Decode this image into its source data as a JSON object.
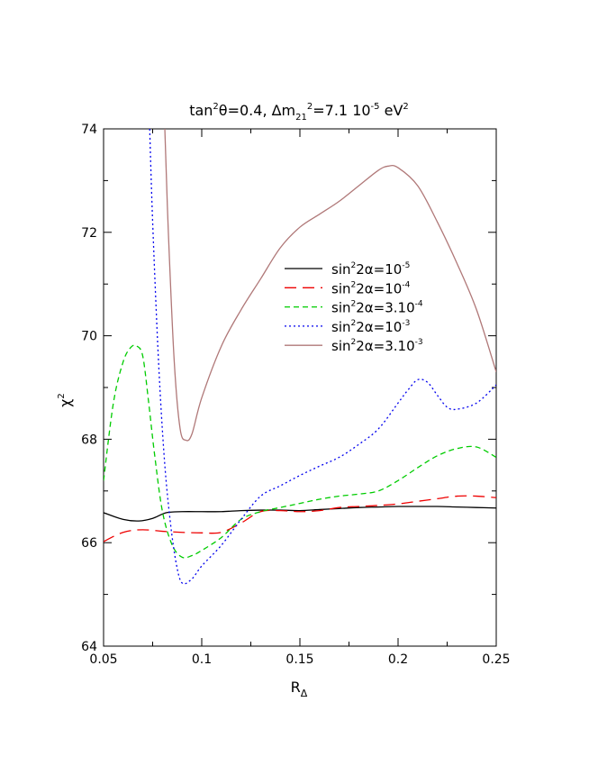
{
  "chart_data": {
    "type": "line",
    "title": {
      "base": "tan",
      "sup1": "2",
      "mid": "θ=0.4, Δm",
      "sub": "21",
      "sup2": "2",
      "mid2": "=7.1 10",
      "sup3": "-5",
      "end": " eV",
      "sup4": "2"
    },
    "xlabel": {
      "base": "R",
      "sub": "Δ"
    },
    "ylabel": {
      "base": "χ",
      "sup": "2"
    },
    "xlim": [
      0.05,
      0.25
    ],
    "ylim": [
      64,
      74
    ],
    "x_ticks": [
      {
        "value": 0.05,
        "label": "0.05"
      },
      {
        "value": 0.1,
        "label": "0.1"
      },
      {
        "value": 0.15,
        "label": "0.15"
      },
      {
        "value": 0.2,
        "label": "0.2"
      },
      {
        "value": 0.25,
        "label": "0.25"
      }
    ],
    "y_ticks": [
      {
        "value": 64,
        "label": "64"
      },
      {
        "value": 66,
        "label": "66"
      },
      {
        "value": 68,
        "label": "68"
      },
      {
        "value": 70,
        "label": "70"
      },
      {
        "value": 72,
        "label": "72"
      },
      {
        "value": 74,
        "label": "74"
      }
    ],
    "grid": false,
    "legend_position": "center-right",
    "series": [
      {
        "key": "s1e-5",
        "label": {
          "pre": "sin",
          "sup1": "2",
          "mid": "2α=10",
          "sup2": "-5"
        },
        "color": "#000000",
        "dash": "",
        "x": [
          0.05,
          0.06,
          0.068,
          0.075,
          0.082,
          0.09,
          0.1,
          0.11,
          0.12,
          0.13,
          0.14,
          0.15,
          0.16,
          0.17,
          0.18,
          0.19,
          0.2,
          0.21,
          0.22,
          0.23,
          0.24,
          0.25
        ],
        "y": [
          66.58,
          66.45,
          66.42,
          66.47,
          66.58,
          66.6,
          66.6,
          66.6,
          66.62,
          66.63,
          66.63,
          66.62,
          66.64,
          66.66,
          66.68,
          66.69,
          66.7,
          66.7,
          66.7,
          66.69,
          66.68,
          66.67
        ]
      },
      {
        "key": "s1e-4",
        "label": {
          "pre": "sin",
          "sup1": "2",
          "mid": "2α=10",
          "sup2": "-4"
        },
        "color": "#ee0000",
        "dash": "13,7",
        "x": [
          0.05,
          0.055,
          0.06,
          0.065,
          0.07,
          0.075,
          0.08,
          0.09,
          0.1,
          0.11,
          0.12,
          0.13,
          0.14,
          0.15,
          0.16,
          0.17,
          0.18,
          0.19,
          0.2,
          0.21,
          0.22,
          0.23,
          0.24,
          0.25
        ],
        "y": [
          66.02,
          66.12,
          66.2,
          66.24,
          66.25,
          66.24,
          66.22,
          66.2,
          66.19,
          66.2,
          66.38,
          66.6,
          66.62,
          66.6,
          66.62,
          66.68,
          66.7,
          66.72,
          66.75,
          66.8,
          66.85,
          66.9,
          66.9,
          66.87
        ]
      },
      {
        "key": "s3e-4",
        "label": {
          "pre": "sin",
          "sup1": "2",
          "mid": "2α=3.10",
          "sup2": "-4"
        },
        "color": "#00cc00",
        "dash": "6,4",
        "x": [
          0.05,
          0.055,
          0.06,
          0.064,
          0.067,
          0.07,
          0.073,
          0.076,
          0.08,
          0.085,
          0.09,
          0.095,
          0.1,
          0.11,
          0.12,
          0.13,
          0.14,
          0.15,
          0.16,
          0.17,
          0.18,
          0.19,
          0.2,
          0.21,
          0.22,
          0.23,
          0.24,
          0.25
        ],
        "y": [
          67.2,
          68.7,
          69.5,
          69.78,
          69.8,
          69.6,
          68.7,
          67.7,
          66.6,
          65.95,
          65.72,
          65.75,
          65.85,
          66.1,
          66.45,
          66.6,
          66.68,
          66.76,
          66.84,
          66.9,
          66.94,
          67.0,
          67.2,
          67.45,
          67.68,
          67.82,
          67.85,
          67.65
        ]
      },
      {
        "key": "s1e-3",
        "label": {
          "pre": "sin",
          "sup1": "2",
          "mid": "2α=10",
          "sup2": "-3"
        },
        "color": "#0000ee",
        "dash": "2,3",
        "x": [
          0.0735,
          0.075,
          0.078,
          0.081,
          0.084,
          0.087,
          0.09,
          0.095,
          0.1,
          0.11,
          0.12,
          0.13,
          0.14,
          0.15,
          0.16,
          0.17,
          0.18,
          0.19,
          0.2,
          0.205,
          0.21,
          0.215,
          0.22,
          0.225,
          0.23,
          0.24,
          0.25
        ],
        "y": [
          74.0,
          72.2,
          69.5,
          67.6,
          66.4,
          65.6,
          65.22,
          65.3,
          65.55,
          65.95,
          66.45,
          66.9,
          67.1,
          67.3,
          67.48,
          67.65,
          67.9,
          68.2,
          68.7,
          68.95,
          69.15,
          69.1,
          68.85,
          68.62,
          68.58,
          68.7,
          69.05
        ]
      },
      {
        "key": "s3e-3",
        "label": {
          "pre": "sin",
          "sup1": "2",
          "mid": "2α=3.10",
          "sup2": "-3"
        },
        "color": "#b07878",
        "dash": "",
        "x": [
          0.0812,
          0.083,
          0.086,
          0.089,
          0.092,
          0.095,
          0.1,
          0.11,
          0.12,
          0.13,
          0.14,
          0.15,
          0.16,
          0.17,
          0.18,
          0.19,
          0.195,
          0.2,
          0.21,
          0.22,
          0.23,
          0.24,
          0.25
        ],
        "y": [
          74.0,
          72.0,
          69.5,
          68.2,
          67.98,
          68.1,
          68.8,
          69.8,
          70.5,
          71.1,
          71.7,
          72.1,
          72.35,
          72.6,
          72.9,
          73.2,
          73.28,
          73.25,
          72.9,
          72.2,
          71.4,
          70.5,
          69.3
        ]
      }
    ]
  }
}
